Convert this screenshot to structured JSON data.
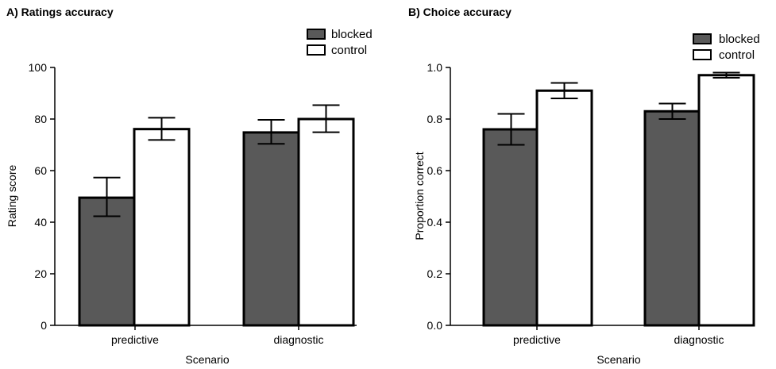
{
  "colors": {
    "blocked": "#595959",
    "control": "#ffffff",
    "stroke": "#000000"
  },
  "chart_data": [
    {
      "type": "bar",
      "title": "A) Ratings accuracy",
      "xlabel": "Scenario",
      "ylabel": "Rating score",
      "categories": [
        "predictive",
        "diagnostic"
      ],
      "ylim": [
        0,
        100
      ],
      "yticks": [
        0,
        20,
        40,
        60,
        80,
        100
      ],
      "ytick_labels": [
        "0",
        "20",
        "40",
        "60",
        "80",
        "100"
      ],
      "grid": false,
      "legend_position": "top-right",
      "series": [
        {
          "name": "blocked",
          "values": [
            49.5,
            74.8
          ],
          "err_low": [
            42.3,
            70.4
          ],
          "err_high": [
            57.3,
            79.7
          ]
        },
        {
          "name": "control",
          "values": [
            76.1,
            80.0
          ],
          "err_low": [
            71.9,
            74.9
          ],
          "err_high": [
            80.5,
            85.4
          ]
        }
      ]
    },
    {
      "type": "bar",
      "title": "B) Choice accuracy",
      "xlabel": "Scenario",
      "ylabel": "Proportion correct",
      "categories": [
        "predictive",
        "diagnostic"
      ],
      "ylim": [
        0,
        1.0
      ],
      "yticks": [
        0,
        0.2,
        0.4,
        0.6,
        0.8,
        1.0
      ],
      "ytick_labels": [
        "0.0",
        "0.2",
        "0.4",
        "0.6",
        "0.8",
        "1.0"
      ],
      "grid": false,
      "legend_position": "top-right",
      "series": [
        {
          "name": "blocked",
          "values": [
            0.76,
            0.83
          ],
          "err_low": [
            0.7,
            0.8
          ],
          "err_high": [
            0.82,
            0.86
          ]
        },
        {
          "name": "control",
          "values": [
            0.91,
            0.97
          ],
          "err_low": [
            0.88,
            0.96
          ],
          "err_high": [
            0.94,
            0.98
          ]
        }
      ]
    }
  ]
}
